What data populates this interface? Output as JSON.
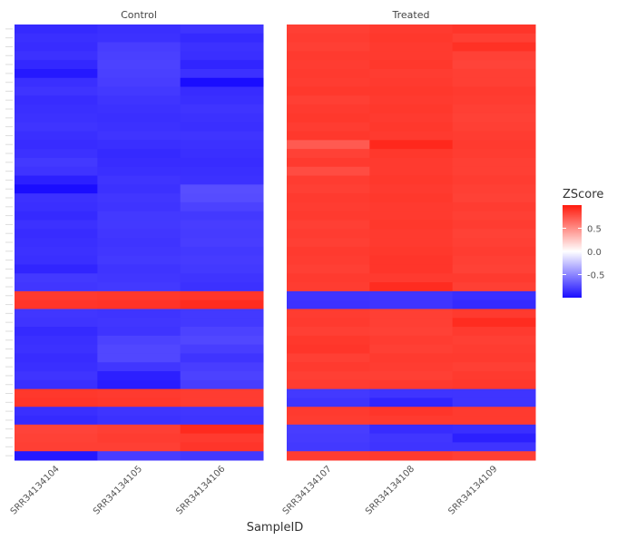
{
  "chart_data": {
    "type": "heatmap",
    "xlabel": "SampleID",
    "ylabel": "",
    "facets": [
      {
        "label": "Control",
        "samples": [
          "SRR34134104",
          "SRR34134105",
          "SRR34134106"
        ]
      },
      {
        "label": "Treated",
        "samples": [
          "SRR34134107",
          "SRR34134108",
          "SRR34134109"
        ]
      }
    ],
    "legend": {
      "title": "ZScore",
      "ticks": [
        0.5,
        0.0,
        -0.5
      ],
      "tick_labels": [
        "0.5",
        "0.0",
        "-0.5"
      ],
      "range": [
        -1.0,
        1.0
      ],
      "low_color": "#1a0dff",
      "mid_color": "#ffffff",
      "high_color": "#ff1a0d",
      "position": "right"
    },
    "row_count": 49,
    "values": [
      [
        -0.88,
        -0.86,
        -0.84,
        0.84,
        0.86,
        0.88
      ],
      [
        -0.86,
        -0.85,
        -0.88,
        0.85,
        0.87,
        0.84
      ],
      [
        -0.87,
        -0.8,
        -0.85,
        0.84,
        0.86,
        0.9
      ],
      [
        -0.85,
        -0.79,
        -0.86,
        0.86,
        0.86,
        0.83
      ],
      [
        -0.89,
        -0.78,
        -0.9,
        0.85,
        0.87,
        0.82
      ],
      [
        -0.95,
        -0.79,
        -0.85,
        0.86,
        0.85,
        0.84
      ],
      [
        -0.86,
        -0.8,
        -1.0,
        0.85,
        0.86,
        0.84
      ],
      [
        -0.84,
        -0.82,
        -0.87,
        0.87,
        0.87,
        0.86
      ],
      [
        -0.87,
        -0.84,
        -0.86,
        0.84,
        0.86,
        0.85
      ],
      [
        -0.86,
        -0.85,
        -0.84,
        0.86,
        0.87,
        0.84
      ],
      [
        -0.85,
        -0.86,
        -0.85,
        0.87,
        0.86,
        0.83
      ],
      [
        -0.84,
        -0.85,
        -0.86,
        0.85,
        0.87,
        0.84
      ],
      [
        -0.86,
        -0.84,
        -0.84,
        0.87,
        0.86,
        0.85
      ],
      [
        -0.87,
        -0.86,
        -0.85,
        0.72,
        0.94,
        0.86
      ],
      [
        -0.85,
        -0.88,
        -0.86,
        0.83,
        0.87,
        0.85
      ],
      [
        -0.82,
        -0.87,
        -0.87,
        0.86,
        0.86,
        0.84
      ],
      [
        -0.84,
        -0.86,
        -0.86,
        0.78,
        0.86,
        0.84
      ],
      [
        -0.92,
        -0.84,
        -0.85,
        0.85,
        0.87,
        0.85
      ],
      [
        -1.0,
        -0.85,
        -0.73,
        0.84,
        0.86,
        0.84
      ],
      [
        -0.85,
        -0.83,
        -0.74,
        0.86,
        0.87,
        0.83
      ],
      [
        -0.86,
        -0.84,
        -0.78,
        0.85,
        0.86,
        0.85
      ],
      [
        -0.88,
        -0.82,
        -0.82,
        0.86,
        0.86,
        0.84
      ],
      [
        -0.85,
        -0.82,
        -0.8,
        0.84,
        0.87,
        0.85
      ],
      [
        -0.87,
        -0.83,
        -0.81,
        0.85,
        0.86,
        0.83
      ],
      [
        -0.86,
        -0.84,
        -0.8,
        0.84,
        0.86,
        0.84
      ],
      [
        -0.85,
        -0.83,
        -0.82,
        0.86,
        0.87,
        0.85
      ],
      [
        -0.86,
        -0.82,
        -0.81,
        0.85,
        0.88,
        0.84
      ],
      [
        -0.9,
        -0.84,
        -0.82,
        0.84,
        0.88,
        0.83
      ],
      [
        -0.82,
        -0.83,
        -0.84,
        0.86,
        0.86,
        0.86
      ],
      [
        -0.83,
        -0.82,
        -0.85,
        0.85,
        0.92,
        0.84
      ],
      [
        0.86,
        0.87,
        0.88,
        -0.84,
        -0.83,
        -0.86
      ],
      [
        0.88,
        0.89,
        0.92,
        -0.85,
        -0.84,
        -0.88
      ],
      [
        -0.83,
        -0.84,
        -0.82,
        0.85,
        0.84,
        0.86
      ],
      [
        -0.84,
        -0.83,
        -0.82,
        0.86,
        0.84,
        0.92
      ],
      [
        -0.88,
        -0.84,
        -0.78,
        0.84,
        0.83,
        0.86
      ],
      [
        -0.86,
        -0.78,
        -0.76,
        0.87,
        0.85,
        0.84
      ],
      [
        -0.85,
        -0.76,
        -0.8,
        0.88,
        0.84,
        0.85
      ],
      [
        -0.87,
        -0.76,
        -0.84,
        0.84,
        0.86,
        0.86
      ],
      [
        -0.86,
        -0.83,
        -0.8,
        0.86,
        0.85,
        0.84
      ],
      [
        -0.84,
        -0.92,
        -0.78,
        0.84,
        0.84,
        0.86
      ],
      [
        -0.86,
        -0.94,
        -0.8,
        0.85,
        0.86,
        0.87
      ],
      [
        0.87,
        0.86,
        0.85,
        -0.82,
        -0.84,
        -0.84
      ],
      [
        0.88,
        0.87,
        0.85,
        -0.84,
        -0.9,
        -0.84
      ],
      [
        -0.86,
        -0.84,
        -0.83,
        0.86,
        0.88,
        0.86
      ],
      [
        -0.88,
        -0.85,
        -0.84,
        0.85,
        0.86,
        0.86
      ],
      [
        0.82,
        0.84,
        0.93,
        -0.8,
        -0.87,
        -0.86
      ],
      [
        0.83,
        0.85,
        0.86,
        -0.81,
        -0.83,
        -0.92
      ],
      [
        0.84,
        0.84,
        0.88,
        -0.82,
        -0.84,
        -0.84
      ],
      [
        -0.95,
        -0.8,
        -0.82,
        0.85,
        0.86,
        0.84
      ]
    ]
  }
}
